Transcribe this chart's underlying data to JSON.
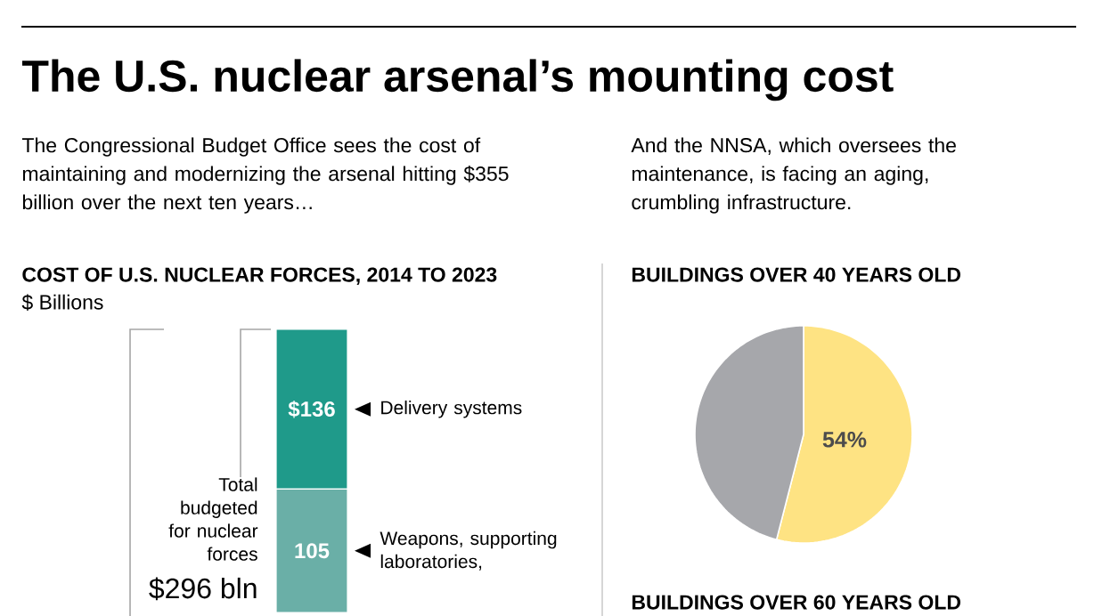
{
  "chart_data": [
    {
      "type": "bar",
      "stacked": true,
      "title": "COST OF U.S. NUCLEAR FORCES, 2014 TO 2023",
      "ylabel": "$ Billions",
      "categories": [
        null
      ],
      "series": [
        {
          "name": "Weapons, supporting laboratories,",
          "color": "#6aafa7",
          "values": [
            105
          ],
          "value_labels": [
            "105"
          ]
        },
        {
          "name": "Delivery systems",
          "color": "#1f9a8a",
          "values": [
            136
          ],
          "value_labels": [
            "$136"
          ]
        }
      ],
      "annotations": [
        "The U.S. nuclear arsenal’s mounting cost",
        "The Congressional Budget Office sees the cost of maintaining and modernizing the arsenal hitting $355 billion over the next ten years…",
        "Total budgeted for nuclear forces",
        "$296 bln"
      ]
    },
    {
      "type": "pie",
      "title": "BUILDINGS OVER 40 YEARS OLD",
      "subtitle": "And the NNSA, which oversees the maintenance, is facing an aging, crumbling infrastructure.",
      "categories": [
        null,
        null
      ],
      "values": [
        54,
        46
      ],
      "colors": [
        "#fee383",
        "#a6a7ab"
      ],
      "value_labels": [
        "54%",
        null
      ],
      "annotations": [
        "BUILDINGS OVER 60 YEARS OLD"
      ]
    }
  ]
}
